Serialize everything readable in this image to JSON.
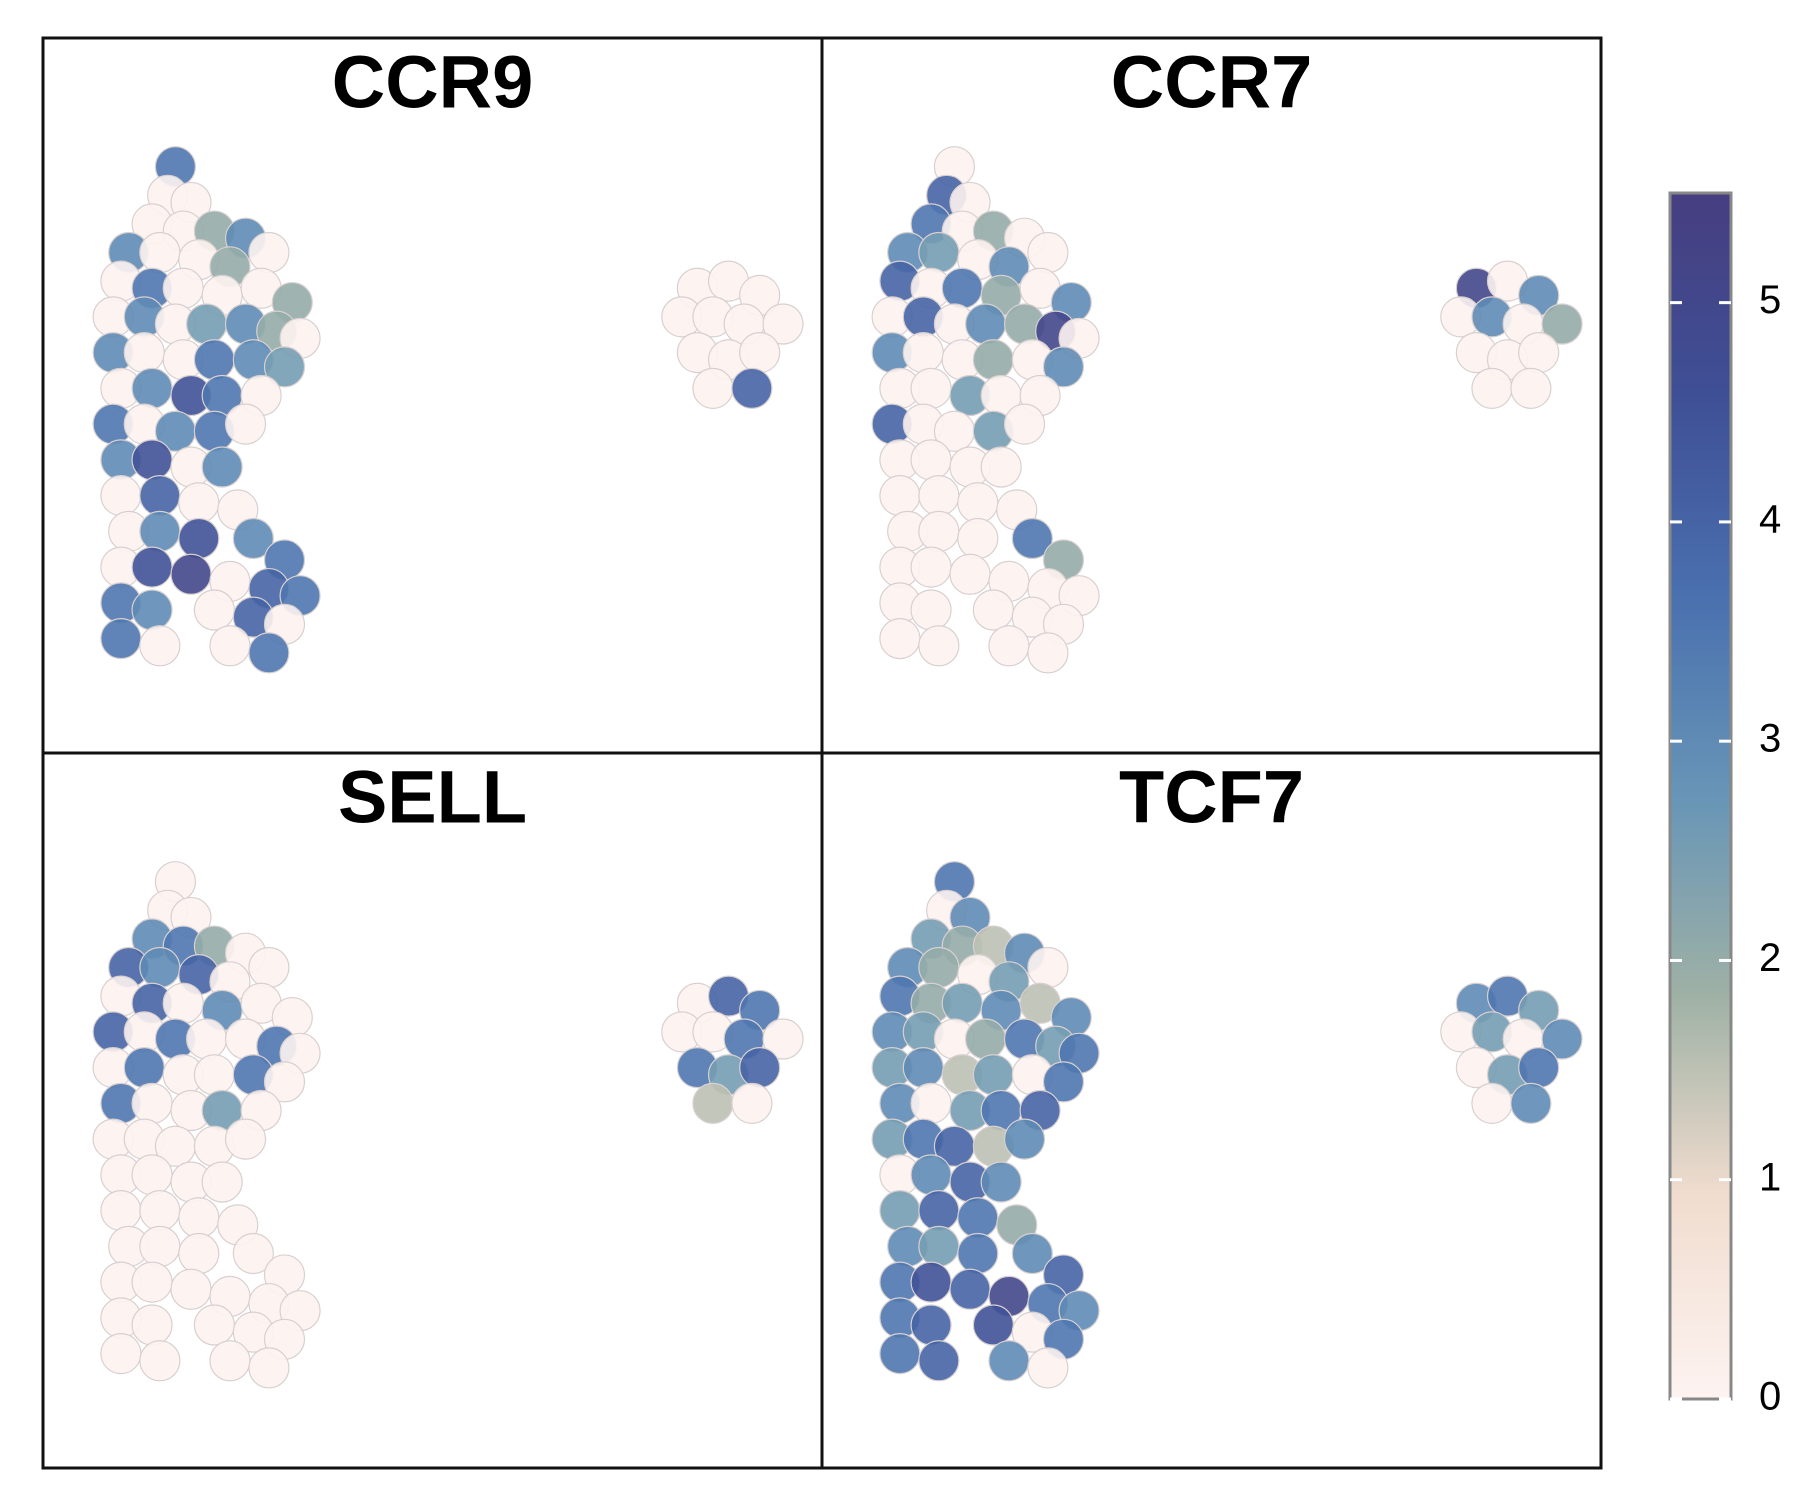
{
  "chart_data": {
    "type": "scatter",
    "xlim": [
      0,
      100
    ],
    "ylim": [
      0,
      100
    ],
    "x": [
      17,
      16,
      19,
      14,
      18,
      22,
      26,
      11,
      15,
      20,
      24,
      29,
      10,
      14,
      18,
      23,
      28,
      32,
      9,
      13,
      17,
      21,
      26,
      30,
      33,
      9,
      13,
      18,
      22,
      27,
      31,
      10,
      14,
      19,
      23,
      28,
      9,
      13,
      17,
      22,
      26,
      10,
      14,
      19,
      23,
      10,
      15,
      20,
      25,
      11,
      15,
      20,
      27,
      31,
      10,
      14,
      19,
      24,
      29,
      33,
      10,
      14,
      22,
      27,
      31,
      10,
      15,
      24,
      29,
      84,
      88,
      92,
      82,
      86,
      90,
      95,
      84,
      88,
      92,
      86,
      91
    ],
    "y": [
      82,
      78,
      77,
      74,
      73,
      73,
      72,
      70,
      70,
      69,
      68,
      70,
      66,
      65,
      65,
      64,
      65,
      63,
      61,
      61,
      60,
      60,
      60,
      59,
      58,
      56,
      56,
      55,
      55,
      55,
      54,
      51,
      51,
      50,
      50,
      50,
      46,
      46,
      45,
      45,
      46,
      41,
      41,
      40,
      40,
      36,
      36,
      35,
      34,
      31,
      31,
      30,
      30,
      27,
      26,
      26,
      25,
      24,
      23,
      22,
      21,
      20,
      20,
      19,
      18,
      16,
      15,
      15,
      14,
      65,
      66,
      64,
      61,
      61,
      60,
      60,
      56,
      55,
      56,
      51,
      51
    ],
    "panels": [
      {
        "title": "CCR9",
        "values": [
          3.5,
          0,
          0,
          0,
          0,
          2,
          3,
          3,
          0,
          0,
          2,
          0,
          0,
          3.5,
          0,
          0,
          0,
          2,
          0,
          3,
          0,
          2.5,
          3,
          2,
          0,
          3,
          0,
          0,
          3.5,
          3,
          2.5,
          0,
          3,
          4.5,
          3.5,
          0,
          3.5,
          0,
          3,
          3.5,
          0,
          3,
          4.5,
          0,
          3,
          0,
          4,
          0,
          0,
          0,
          3,
          4.5,
          3,
          3.5,
          0,
          4.5,
          5,
          0,
          4,
          3.5,
          3.5,
          3,
          0,
          4,
          0,
          3.5,
          0,
          0,
          3.5,
          0,
          0,
          0,
          0,
          0,
          0,
          0,
          0,
          0,
          0,
          0,
          4
        ]
      },
      {
        "title": "CCR7",
        "values": [
          0,
          4,
          0,
          3.5,
          0,
          2,
          0,
          3,
          2.5,
          0,
          3,
          0,
          4,
          0,
          3.5,
          2,
          0,
          3,
          0,
          4,
          0,
          3,
          2,
          5,
          0,
          3,
          0,
          0,
          2,
          0,
          3,
          0,
          0,
          2.5,
          0,
          0,
          4,
          0,
          0,
          2.5,
          0,
          0,
          0,
          0,
          0,
          0,
          0,
          0,
          0,
          0,
          0,
          0,
          3.5,
          2,
          0,
          0,
          0,
          0,
          0,
          0,
          0,
          0,
          0,
          0,
          0,
          0,
          0,
          0,
          0,
          5,
          0,
          3,
          0,
          3,
          0,
          2,
          0,
          0,
          0,
          0,
          0
        ]
      },
      {
        "title": "SELL",
        "values": [
          0,
          0,
          0,
          3,
          3.5,
          2,
          0,
          4,
          3,
          4,
          0,
          0,
          0,
          4,
          0,
          3,
          0,
          0,
          4,
          0,
          3.5,
          0,
          0,
          3.5,
          0,
          0,
          3.5,
          0,
          0,
          3.5,
          0,
          3.5,
          0,
          0,
          2.5,
          0,
          0,
          0,
          0,
          0,
          0,
          0,
          0,
          0,
          0,
          0,
          0,
          0,
          0,
          0,
          0,
          0,
          0,
          0,
          0,
          0,
          0,
          0,
          0,
          0,
          0,
          0,
          0,
          0,
          0,
          0,
          0,
          0,
          0,
          0,
          4,
          3.5,
          0,
          0,
          3.5,
          0,
          3.5,
          2.5,
          4,
          1.5,
          0
        ]
      },
      {
        "title": "TCF7",
        "values": [
          3.5,
          0,
          3,
          2.5,
          2,
          1.5,
          3,
          3,
          2,
          0,
          2.5,
          0,
          3.5,
          2,
          2.5,
          3,
          1.5,
          3,
          3,
          2.5,
          0,
          2,
          3.5,
          2.5,
          3.5,
          2.5,
          3,
          1.5,
          2.5,
          0,
          3.5,
          3,
          0,
          2.5,
          3.5,
          4,
          2.5,
          3.5,
          4,
          1.5,
          3,
          0,
          3,
          4,
          3,
          2.5,
          4,
          3.5,
          2,
          3,
          2.5,
          3.5,
          3,
          4,
          3.5,
          4.5,
          4,
          5,
          3.5,
          3,
          3.5,
          4,
          4.5,
          0,
          3.5,
          3.5,
          4,
          3,
          0,
          3,
          3.5,
          2.5,
          0,
          2.5,
          0,
          3,
          0,
          2.5,
          3.5,
          0,
          3
        ]
      }
    ],
    "clim": [
      0,
      5.5
    ],
    "cticks": [
      0,
      1,
      2,
      3,
      4,
      5
    ],
    "colors": [
      "#fdf3f1",
      "#f1ddcf",
      "#9fb1a5",
      "#6795b7",
      "#4a70ae",
      "#3f4f95",
      "#463e80"
    ]
  }
}
